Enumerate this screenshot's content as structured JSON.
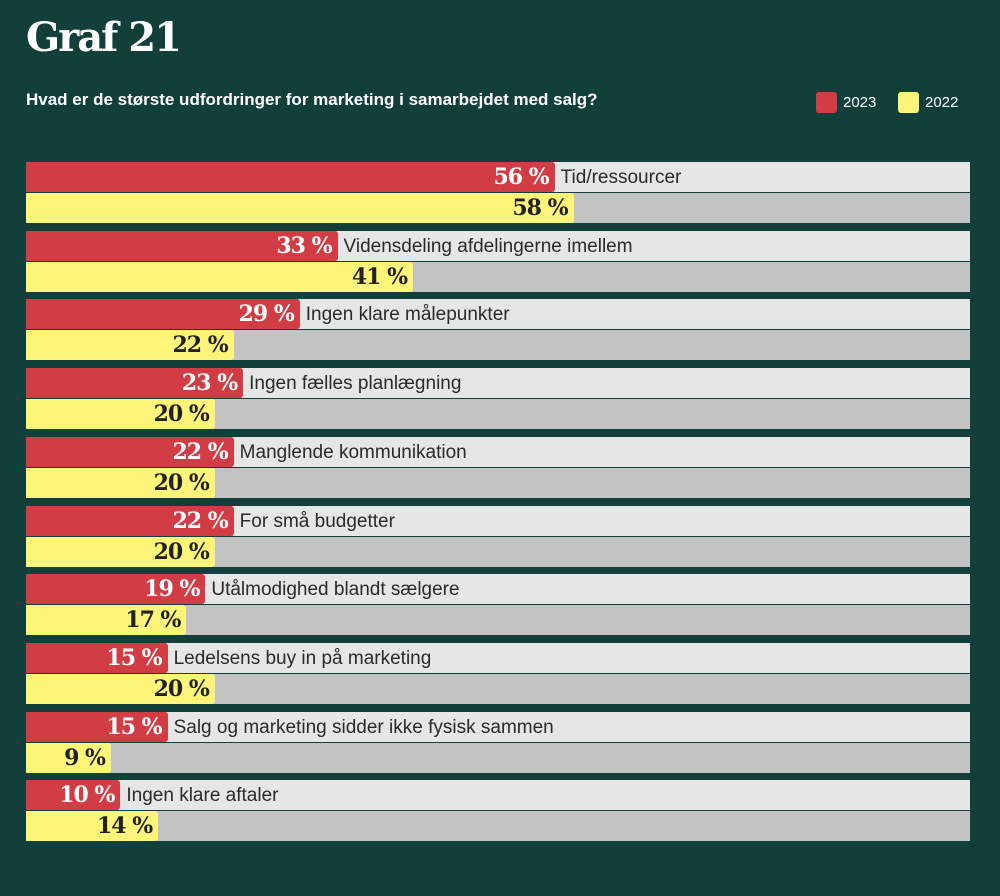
{
  "chart_data": {
    "type": "bar",
    "orientation": "horizontal",
    "title": "Graf 21",
    "subtitle": "Hvad er de største udfordringer for marketing i samarbejdet med salg?",
    "xlim": [
      0,
      100
    ],
    "unit": " %",
    "categories": [
      "Tid/ressourcer",
      "Vidensdeling afdelingerne imellem",
      "Ingen klare målepunkter",
      "Ingen fælles planlægning",
      "Manglende kommunikation",
      "For små budgetter",
      "Utålmodighed blandt sælgere",
      "Ledelsens buy in på marketing",
      "Salg og marketing sidder ikke fysisk sammen",
      "Ingen klare aftaler"
    ],
    "series": [
      {
        "name": "2023",
        "color": "#d23c44",
        "values": [
          56,
          33,
          29,
          23,
          22,
          22,
          19,
          15,
          15,
          10
        ]
      },
      {
        "name": "2022",
        "color": "#fdf57a",
        "values": [
          58,
          41,
          22,
          20,
          20,
          20,
          17,
          20,
          9,
          14
        ]
      }
    ],
    "legend_position": "top-right",
    "grid": false
  }
}
